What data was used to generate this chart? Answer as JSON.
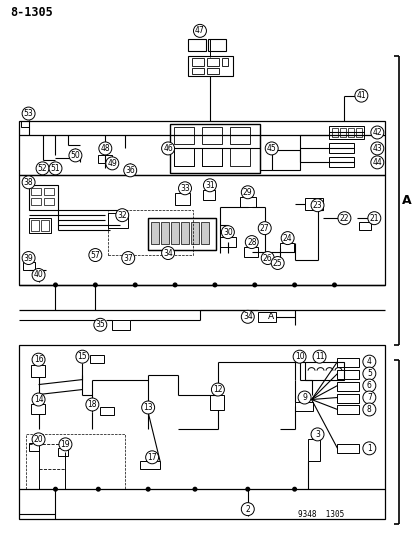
{
  "title": "8-1305",
  "bg": "#ffffff",
  "lc": "#000000",
  "watermark": "9348  1305",
  "fig_width": 4.14,
  "fig_height": 5.33,
  "dpi": 100
}
